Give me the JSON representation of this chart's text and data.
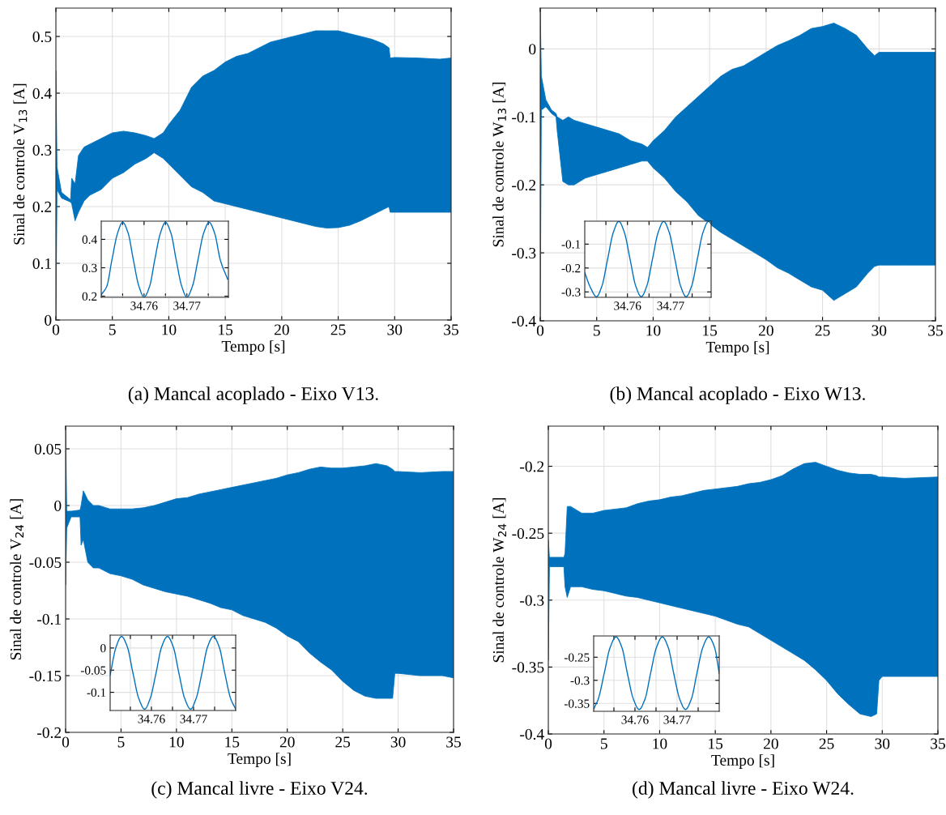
{
  "chart_data": [
    {
      "type": "line",
      "ylabel": "Sinal de controle V$_{13}$ [A]",
      "xlabel": "Tempo [s]",
      "annotations": [
        "(a) Mancal acoplado - Eixo V13."
      ],
      "xlim": [
        0,
        35
      ],
      "ylim": [
        0,
        0.55
      ],
      "xticks": [
        0,
        5,
        10,
        15,
        20,
        25,
        30,
        35
      ],
      "yticks": [
        0,
        0.1,
        0.2,
        0.3,
        0.4,
        0.5
      ],
      "grid": true,
      "line_style": "solid",
      "series": [
        {
          "color": "#0072bd",
          "x": [
            0,
            0.1,
            0.5,
            1.3,
            1.4,
            1.7,
            2.0,
            2.5,
            3,
            4,
            5,
            6,
            7,
            8,
            8.7,
            9.5,
            10,
            11,
            12,
            13,
            14,
            15,
            16,
            17,
            18,
            19,
            20,
            21,
            22,
            23,
            24,
            25,
            26,
            27,
            28,
            29,
            29.5,
            29.6,
            30,
            32,
            34,
            35
          ],
          "values": [
            null,
            null,
            null,
            null,
            null,
            null,
            null,
            null,
            null,
            null,
            null,
            null,
            null,
            null,
            null,
            null,
            null,
            null,
            null,
            null,
            null,
            null,
            null,
            null,
            null,
            null,
            null,
            null,
            null,
            null,
            null,
            null,
            null,
            null,
            null,
            null,
            null,
            null,
            null,
            null,
            null,
            null
          ],
          "lower": [
            0,
            0.23,
            0.215,
            0.208,
            0.205,
            0.175,
            0.19,
            0.21,
            0.22,
            0.23,
            0.25,
            0.26,
            0.275,
            0.285,
            0.295,
            0.285,
            0.275,
            0.255,
            0.235,
            0.225,
            0.21,
            0.205,
            0.2,
            0.195,
            0.19,
            0.185,
            0.18,
            0.175,
            0.17,
            0.165,
            0.162,
            0.163,
            0.167,
            0.175,
            0.185,
            0.195,
            0.2,
            0.19,
            0.19,
            0.19,
            0.19,
            0.19
          ],
          "upper": [
            0.44,
            0.27,
            0.225,
            0.212,
            0.25,
            0.24,
            0.29,
            0.305,
            0.31,
            0.32,
            0.33,
            0.333,
            0.33,
            0.325,
            0.32,
            0.33,
            0.345,
            0.37,
            0.41,
            0.43,
            0.44,
            0.455,
            0.465,
            0.47,
            0.48,
            0.49,
            0.495,
            0.5,
            0.505,
            0.51,
            0.51,
            0.51,
            0.505,
            0.5,
            0.495,
            0.487,
            0.48,
            0.462,
            0.463,
            0.462,
            0.46,
            0.462
          ]
        }
      ]
    },
    {
      "type": "line",
      "xlim": [
        34.75,
        34.7797
      ],
      "ylim": [
        0.196,
        0.464
      ],
      "xticks": [
        {
          "value": 34.755,
          "label": null
        },
        34.76,
        {
          "value": 34.765,
          "label": null
        },
        34.77,
        {
          "value": 34.775,
          "label": null
        }
      ],
      "yticks": [
        0.2,
        0.3,
        0.4
      ],
      "grid": true,
      "line_style": "solid",
      "series": [
        {
          "color": "#0072bd",
          "x": [
            34.75,
            34.7513,
            34.7525,
            34.7538,
            34.755,
            34.7563,
            34.7575,
            34.7588,
            34.76,
            34.7613,
            34.7625,
            34.7638,
            34.765,
            34.7663,
            34.7675,
            34.7688,
            34.77,
            34.7713,
            34.7726,
            34.7739,
            34.7752,
            34.7765,
            34.7778,
            34.7795
          ],
          "values": [
            0.205,
            0.235,
            0.328,
            0.421,
            0.46,
            0.421,
            0.328,
            0.235,
            0.197,
            0.235,
            0.328,
            0.421,
            0.46,
            0.421,
            0.328,
            0.235,
            0.197,
            0.235,
            0.328,
            0.421,
            0.46,
            0.421,
            0.328,
            0.26
          ]
        }
      ]
    },
    {
      "type": "line",
      "ylabel": "Sinal de controle W$_{13}$ [A]",
      "xlabel": "Tempo [s]",
      "annotations": [
        "(b) Mancal acoplado - Eixo W13."
      ],
      "xlim": [
        0,
        35
      ],
      "ylim": [
        -0.4,
        0.06
      ],
      "xticks": [
        0,
        5,
        10,
        15,
        20,
        25,
        30,
        35
      ],
      "yticks": [
        -0.4,
        -0.3,
        -0.2,
        -0.1,
        0
      ],
      "grid": true,
      "line_style": "solid",
      "series": [
        {
          "color": "#0072bd",
          "x": [
            0,
            0.1,
            0.5,
            1.0,
            1.4,
            1.5,
            2.0,
            2.5,
            3,
            4,
            5,
            6,
            7,
            8,
            9,
            9.5,
            10,
            11,
            12,
            13,
            14,
            16,
            17,
            18,
            19,
            20,
            21,
            22,
            23,
            24,
            25,
            26,
            27,
            28,
            29,
            29.6,
            30,
            32,
            35
          ],
          "values": [
            null,
            null,
            null,
            null,
            null,
            null,
            null,
            null,
            null,
            null,
            null,
            null,
            null,
            null,
            null,
            null,
            null,
            null,
            null,
            null,
            null,
            null,
            null,
            null,
            null,
            null,
            null,
            null,
            null,
            null,
            null,
            null,
            null,
            null,
            null,
            null,
            null,
            null,
            null
          ],
          "lower": [
            -0.4,
            -0.09,
            -0.085,
            -0.095,
            -0.1,
            -0.12,
            -0.195,
            -0.2,
            -0.2,
            -0.19,
            -0.185,
            -0.18,
            -0.175,
            -0.17,
            -0.165,
            -0.165,
            -0.175,
            -0.19,
            -0.21,
            -0.225,
            -0.245,
            -0.27,
            -0.28,
            -0.29,
            -0.3,
            -0.31,
            -0.322,
            -0.33,
            -0.34,
            -0.35,
            -0.355,
            -0.37,
            -0.36,
            -0.35,
            -0.33,
            -0.32,
            -0.318,
            -0.318,
            -0.318
          ],
          "upper": [
            0.06,
            -0.04,
            -0.075,
            -0.09,
            -0.095,
            -0.1,
            -0.105,
            -0.1,
            -0.105,
            -0.11,
            -0.115,
            -0.12,
            -0.125,
            -0.135,
            -0.14,
            -0.145,
            -0.135,
            -0.12,
            -0.1,
            -0.085,
            -0.07,
            -0.04,
            -0.03,
            -0.025,
            -0.015,
            -0.005,
            0.005,
            0.012,
            0.02,
            0.03,
            0.033,
            0.038,
            0.03,
            0.02,
            0.0,
            -0.01,
            -0.005,
            -0.005,
            -0.005
          ]
        }
      ]
    },
    {
      "type": "line",
      "xlim": [
        34.7501,
        34.7794
      ],
      "ylim": [
        -0.3226,
        -0.004
      ],
      "xticks": [
        {
          "value": 34.755,
          "label": null
        },
        34.76,
        {
          "value": 34.765,
          "label": null
        },
        34.77,
        {
          "value": 34.775,
          "label": null
        }
      ],
      "yticks": [
        -0.3,
        -0.2,
        -0.1
      ],
      "grid": true,
      "line_style": "solid",
      "series": [
        {
          "color": "#0072bd",
          "x": [
            34.7501,
            34.7515,
            34.7528,
            34.7541,
            34.7554,
            34.7567,
            34.758,
            34.7593,
            34.7606,
            34.7619,
            34.7632,
            34.7645,
            34.7658,
            34.7671,
            34.7684,
            34.7697,
            34.771,
            34.7723,
            34.7736,
            34.7749,
            34.7762,
            34.7775,
            34.7788,
            34.7794
          ],
          "values": [
            -0.22,
            -0.285,
            -0.32,
            -0.274,
            -0.163,
            -0.052,
            -0.005,
            -0.052,
            -0.163,
            -0.274,
            -0.32,
            -0.274,
            -0.163,
            -0.052,
            -0.005,
            -0.052,
            -0.163,
            -0.274,
            -0.32,
            -0.274,
            -0.163,
            -0.052,
            -0.005,
            -0.015
          ]
        }
      ]
    },
    {
      "type": "line",
      "ylabel": "Sinal de controle V$_{24}$ [A]",
      "xlabel": "Tempo [s]",
      "annotations": [
        "(c) Mancal livre - Eixo V24."
      ],
      "xlim": [
        0,
        35
      ],
      "ylim": [
        -0.2,
        0.07
      ],
      "xticks": [
        0,
        5,
        10,
        15,
        20,
        25,
        30,
        35
      ],
      "yticks": [
        -0.2,
        -0.15,
        -0.1,
        -0.05,
        0,
        0.05
      ],
      "grid": true,
      "line_style": "solid",
      "series": [
        {
          "color": "#0072bd",
          "x": [
            0,
            0.1,
            0.5,
            1.3,
            1.4,
            1.6,
            2.0,
            2.5,
            3,
            4,
            5,
            6,
            7,
            8,
            9,
            10,
            11,
            12,
            13,
            14,
            15,
            16,
            17,
            18,
            19,
            20,
            21,
            22,
            23,
            24,
            25,
            26,
            27,
            28,
            29,
            29.5,
            29.7,
            30,
            32,
            34,
            35
          ],
          "values": [
            null,
            null,
            null,
            null,
            null,
            null,
            null,
            null,
            null,
            null,
            null,
            null,
            null,
            null,
            null,
            null,
            null,
            null,
            null,
            null,
            null,
            null,
            null,
            null,
            null,
            null,
            null,
            null,
            null,
            null,
            null,
            null,
            null,
            null,
            null,
            null,
            null,
            null,
            null,
            null,
            null
          ],
          "lower": [
            -0.07,
            -0.02,
            -0.01,
            -0.01,
            -0.035,
            -0.03,
            -0.05,
            -0.055,
            -0.055,
            -0.06,
            -0.062,
            -0.065,
            -0.07,
            -0.073,
            -0.076,
            -0.078,
            -0.08,
            -0.083,
            -0.086,
            -0.09,
            -0.092,
            -0.097,
            -0.1,
            -0.103,
            -0.108,
            -0.115,
            -0.12,
            -0.13,
            -0.138,
            -0.145,
            -0.155,
            -0.163,
            -0.168,
            -0.17,
            -0.17,
            -0.17,
            -0.148,
            -0.148,
            -0.15,
            -0.15,
            -0.152
          ],
          "upper": [
            0.07,
            -0.005,
            -0.005,
            -0.004,
            0.0,
            0.013,
            0.005,
            0.0,
            0.0,
            -0.003,
            -0.003,
            -0.003,
            -0.002,
            0.0,
            0.003,
            0.006,
            0.007,
            0.01,
            0.012,
            0.014,
            0.016,
            0.018,
            0.02,
            0.022,
            0.024,
            0.027,
            0.029,
            0.032,
            0.034,
            0.033,
            0.033,
            0.034,
            0.035,
            0.037,
            0.035,
            0.032,
            0.03,
            0.03,
            0.029,
            0.03,
            0.03
          ]
        }
      ]
    },
    {
      "type": "line",
      "xlim": [
        34.7502,
        34.78
      ],
      "ylim": [
        -0.141,
        0.029
      ],
      "xticks": [
        {
          "value": 34.755,
          "label": null
        },
        34.76,
        {
          "value": 34.765,
          "label": null
        },
        34.77,
        {
          "value": 34.775,
          "label": null
        }
      ],
      "yticks": [
        -0.1,
        -0.05,
        0
      ],
      "grid": true,
      "line_style": "solid",
      "series": [
        {
          "color": "#0072bd",
          "x": [
            34.7502,
            34.7516,
            34.7529,
            34.7543,
            34.7556,
            34.757,
            34.7584,
            34.7597,
            34.7611,
            34.7624,
            34.7638,
            34.7652,
            34.7665,
            34.7679,
            34.7693,
            34.7706,
            34.772,
            34.7733,
            34.7747,
            34.7761,
            34.7774,
            34.7788,
            34.78
          ],
          "values": [
            -0.061,
            0.002,
            0.026,
            0.002,
            -0.056,
            -0.114,
            -0.138,
            -0.114,
            -0.056,
            0.002,
            0.026,
            0.002,
            -0.056,
            -0.114,
            -0.138,
            -0.114,
            -0.056,
            0.002,
            0.026,
            0.002,
            -0.056,
            -0.114,
            -0.138
          ]
        }
      ]
    },
    {
      "type": "line",
      "ylabel": "Sinal de controle W$_{24}$ [A]",
      "xlabel": "Tempo [s]",
      "annotations": [
        "(d) Mancal livre - Eixo W24."
      ],
      "xlim": [
        0,
        35
      ],
      "ylim": [
        -0.4,
        -0.17
      ],
      "xticks": [
        0,
        5,
        10,
        15,
        20,
        25,
        30,
        35
      ],
      "yticks": [
        -0.4,
        -0.35,
        -0.3,
        -0.25,
        -0.2
      ],
      "grid": true,
      "line_style": "solid",
      "series": [
        {
          "color": "#0072bd",
          "x": [
            0,
            0.1,
            1.4,
            1.5,
            1.7,
            2,
            3,
            4,
            5,
            6,
            7,
            8,
            9,
            10,
            11,
            12,
            13,
            14,
            15,
            16,
            17,
            18,
            19,
            20,
            21,
            22,
            23,
            24,
            25,
            26,
            27,
            28,
            29,
            29.5,
            29.7,
            30,
            32,
            35
          ],
          "values": [
            null,
            null,
            null,
            null,
            null,
            null,
            null,
            null,
            null,
            null,
            null,
            null,
            null,
            null,
            null,
            null,
            null,
            null,
            null,
            null,
            null,
            null,
            null,
            null,
            null,
            null,
            null,
            null,
            null,
            null,
            null,
            null,
            null,
            null,
            null,
            null,
            null,
            null
          ],
          "lower": [
            -0.345,
            -0.275,
            -0.275,
            -0.29,
            -0.298,
            -0.29,
            -0.29,
            -0.292,
            -0.293,
            -0.295,
            -0.297,
            -0.298,
            -0.3,
            -0.302,
            -0.304,
            -0.306,
            -0.308,
            -0.31,
            -0.312,
            -0.315,
            -0.318,
            -0.32,
            -0.325,
            -0.33,
            -0.335,
            -0.34,
            -0.345,
            -0.352,
            -0.36,
            -0.37,
            -0.378,
            -0.385,
            -0.387,
            -0.385,
            -0.36,
            -0.357,
            -0.357,
            -0.357
          ],
          "upper": [
            -0.255,
            -0.268,
            -0.268,
            -0.265,
            -0.23,
            -0.23,
            -0.235,
            -0.235,
            -0.233,
            -0.232,
            -0.231,
            -0.228,
            -0.226,
            -0.225,
            -0.223,
            -0.222,
            -0.22,
            -0.218,
            -0.217,
            -0.216,
            -0.215,
            -0.213,
            -0.212,
            -0.21,
            -0.207,
            -0.202,
            -0.198,
            -0.197,
            -0.2,
            -0.203,
            -0.205,
            -0.206,
            -0.206,
            -0.207,
            -0.208,
            -0.208,
            -0.209,
            -0.208
          ]
        }
      ]
    },
    {
      "type": "line",
      "xlim": [
        34.7502,
        34.78
      ],
      "ylim": [
        -0.367,
        -0.204
      ],
      "xticks": [
        {
          "value": 34.755,
          "label": null
        },
        34.76,
        {
          "value": 34.765,
          "label": null
        },
        34.77,
        {
          "value": 34.775,
          "label": null
        }
      ],
      "yticks": [
        -0.35,
        -0.3,
        -0.25
      ],
      "grid": true,
      "line_style": "solid",
      "series": [
        {
          "color": "#0072bd",
          "x": [
            34.7502,
            34.7513,
            34.7527,
            34.7541,
            34.7555,
            34.7569,
            34.7582,
            34.7596,
            34.761,
            34.7624,
            34.7637,
            34.7651,
            34.7665,
            34.7679,
            34.7692,
            34.7706,
            34.772,
            34.7734,
            34.7747,
            34.7761,
            34.7775,
            34.7789,
            34.78
          ],
          "values": [
            -0.362,
            -0.34,
            -0.285,
            -0.229,
            -0.206,
            -0.229,
            -0.285,
            -0.34,
            -0.363,
            -0.34,
            -0.285,
            -0.229,
            -0.206,
            -0.229,
            -0.285,
            -0.34,
            -0.363,
            -0.34,
            -0.285,
            -0.229,
            -0.206,
            -0.229,
            -0.285
          ]
        }
      ]
    }
  ]
}
